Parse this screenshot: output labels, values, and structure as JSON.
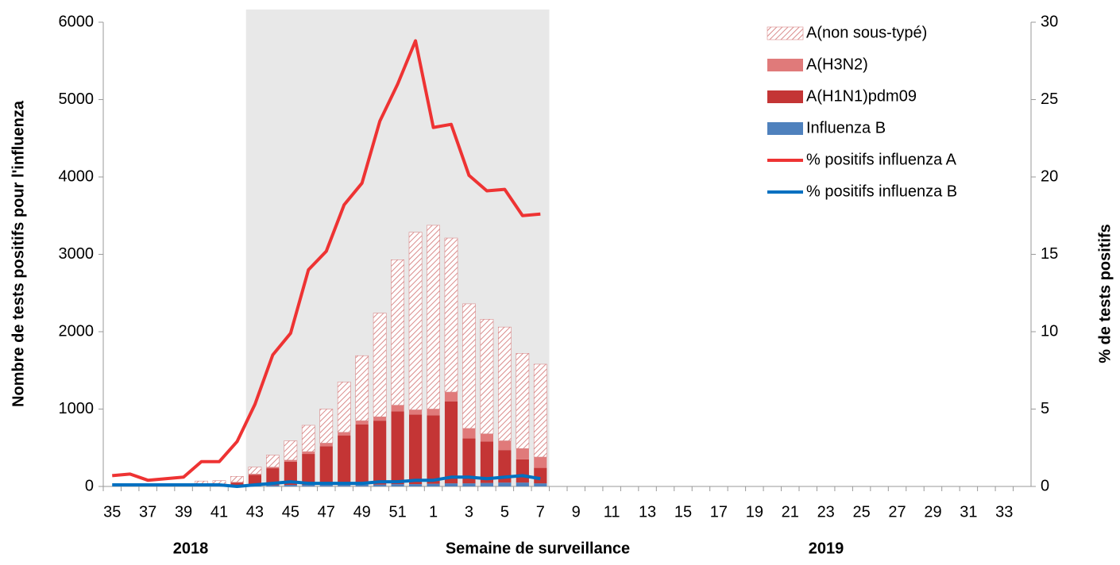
{
  "chart_data": {
    "type": "bar",
    "y_label": "Nombre de tests positifs pour l'influenza",
    "y2_label": "% de tests positifs",
    "x_label": "Semaine de surveillance",
    "annotations": [
      "2018",
      "2019"
    ],
    "categories": [
      "35",
      null,
      "37",
      null,
      "39",
      null,
      "41",
      null,
      "43",
      null,
      "45",
      null,
      "47",
      null,
      "49",
      null,
      "51",
      null,
      "1",
      null,
      "3",
      null,
      "5",
      null,
      "7",
      null,
      "9",
      null,
      "11",
      null,
      "13",
      null,
      "15",
      null,
      "17",
      null,
      "19",
      null,
      "21",
      null,
      "23",
      null,
      "25",
      null,
      "27",
      null,
      "29",
      null,
      "31",
      null,
      "33",
      null
    ],
    "highlight": [
      8,
      24
    ],
    "ylim": [
      0,
      6000
    ],
    "yticks": [
      0,
      1000,
      2000,
      3000,
      4000,
      5000,
      6000
    ],
    "y2lim": [
      0,
      30
    ],
    "y2ticks": [
      0,
      5,
      10,
      15,
      20,
      25,
      30
    ],
    "grid": false,
    "legend": "top-right",
    "series": [
      {
        "name": "A(non sous-typé)",
        "color": "#d98b8b",
        "pattern": "hatch",
        "values": [
          null,
          null,
          null,
          null,
          null,
          60,
          60,
          75,
          90,
          155,
          250,
          340,
          440,
          650,
          840,
          1340,
          1880,
          2295,
          2375,
          1990,
          1610,
          1480,
          1470,
          1230,
          1200,
          null,
          null,
          null,
          null,
          null,
          null,
          null,
          null,
          null,
          null,
          null,
          null,
          null,
          null,
          null,
          null,
          null,
          null,
          null,
          null,
          null,
          null,
          null,
          null,
          null,
          null,
          null
        ]
      },
      {
        "name": "A(H3N2)",
        "color": "#e07a7a",
        "values": [
          null,
          null,
          null,
          null,
          null,
          0,
          0,
          5,
          10,
          15,
          20,
          30,
          40,
          40,
          50,
          50,
          80,
          60,
          80,
          120,
          130,
          100,
          120,
          140,
          140,
          null,
          null,
          null,
          null,
          null,
          null,
          null,
          null,
          null,
          null,
          null,
          null,
          null,
          null,
          null,
          null,
          null,
          null,
          null,
          null,
          null,
          null,
          null,
          null,
          null,
          null,
          null
        ]
      },
      {
        "name": "A(H1N1)pdm09",
        "color": "#c43535",
        "values": [
          null,
          null,
          null,
          null,
          null,
          5,
          10,
          45,
          140,
          220,
          300,
          400,
          500,
          640,
          775,
          825,
          940,
          900,
          885,
          1060,
          580,
          535,
          420,
          300,
          200,
          null,
          null,
          null,
          null,
          null,
          null,
          null,
          null,
          null,
          null,
          null,
          null,
          null,
          null,
          null,
          null,
          null,
          null,
          null,
          null,
          null,
          null,
          null,
          null,
          null,
          null,
          null
        ]
      },
      {
        "name": "Influenza B",
        "color": "#4f81bd",
        "values": [
          null,
          null,
          null,
          null,
          null,
          5,
          5,
          5,
          10,
          15,
          20,
          20,
          20,
          20,
          25,
          25,
          30,
          30,
          35,
          40,
          40,
          45,
          50,
          50,
          40,
          null,
          null,
          null,
          null,
          null,
          null,
          null,
          null,
          null,
          null,
          null,
          null,
          null,
          null,
          null,
          null,
          null,
          null,
          null,
          null,
          null,
          null,
          null,
          null,
          null,
          null,
          null
        ]
      },
      {
        "name": "% positifs influenza A",
        "type": "line",
        "axis": "y2",
        "color": "#ee3333",
        "values": [
          0.7,
          0.8,
          0.4,
          0.5,
          0.6,
          1.6,
          1.6,
          2.9,
          5.3,
          8.5,
          9.9,
          14.0,
          15.2,
          18.2,
          19.6,
          23.6,
          26.0,
          28.8,
          23.2,
          23.4,
          20.1,
          19.1,
          19.2,
          17.5,
          17.6,
          null,
          null,
          null,
          null,
          null,
          null,
          null,
          null,
          null,
          null,
          null,
          null,
          null,
          null,
          null,
          null,
          null,
          null,
          null,
          null,
          null,
          null,
          null,
          null,
          null,
          null,
          null
        ]
      },
      {
        "name": "% positifs influenza B",
        "type": "line",
        "axis": "y2",
        "color": "#0070c0",
        "values": [
          0.1,
          0.1,
          0.1,
          0.1,
          0.1,
          0.1,
          0.1,
          0.0,
          0.1,
          0.2,
          0.3,
          0.2,
          0.2,
          0.2,
          0.2,
          0.3,
          0.3,
          0.4,
          0.4,
          0.6,
          0.6,
          0.5,
          0.6,
          0.7,
          0.5,
          null,
          null,
          null,
          null,
          null,
          null,
          null,
          null,
          null,
          null,
          null,
          null,
          null,
          null,
          null,
          null,
          null,
          null,
          null,
          null,
          null,
          null,
          null,
          null,
          null,
          null,
          null
        ]
      }
    ]
  }
}
